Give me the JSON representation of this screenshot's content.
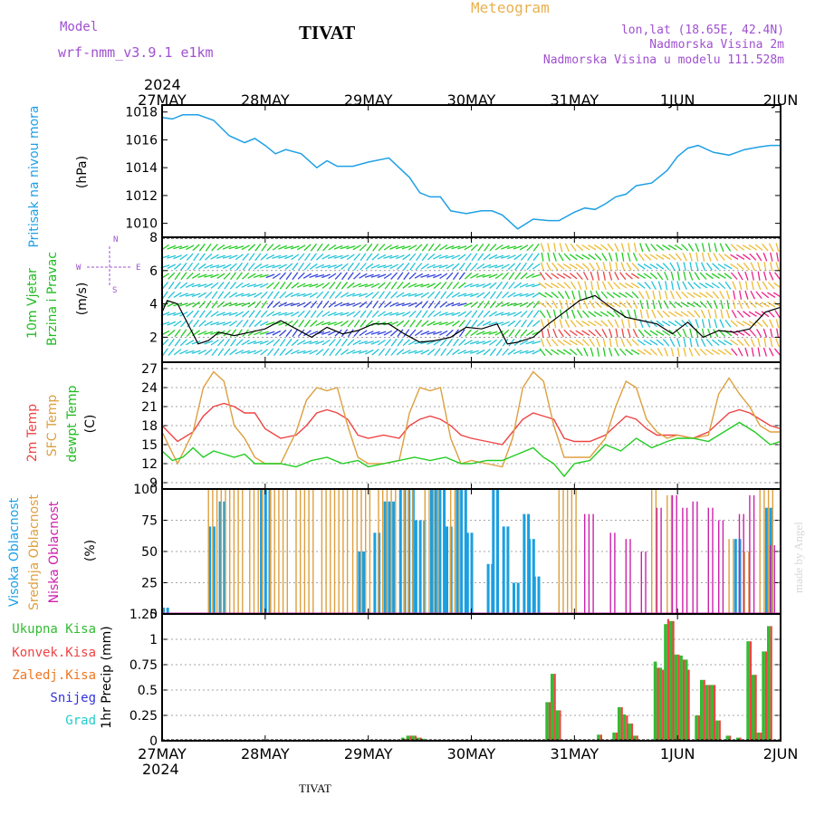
{
  "header": {
    "model_label": "Model",
    "model_name": "wrf-nmm_v3.9.1 e1km",
    "station": "TIVAT",
    "meteogram": "Meteogram",
    "lonlat": "lon,lat (18.65E, 42.4N)",
    "elev": "Nadmorska Visina 2m",
    "elev_model": "Nadmorska Visina u modelu 111.528m",
    "footer_station": "TIVAT",
    "watermark": "made by Angel",
    "year_top": "2024",
    "year_bottom": "2024"
  },
  "time_axis": {
    "labels": [
      "27MAY",
      "28MAY",
      "29MAY",
      "30MAY",
      "31MAY",
      "1JUN",
      "2JUN"
    ],
    "days": 6
  },
  "colors": {
    "pressure": "#1fa0e6",
    "t2m": "#ee4444",
    "tsfc": "#dda040",
    "dewpt": "#22cc22",
    "cloud_high": "#1b9fe0",
    "cloud_mid": "#dda040",
    "cloud_low": "#cc22aa",
    "precip_total": "#33bb33",
    "precip_conv": "#ee4444",
    "precip_frozen": "#ee7722",
    "snow": "#3333dd",
    "hail": "#22cccc",
    "wind_speed": "#000000"
  },
  "panels": {
    "pressure": {
      "ylabel": "Pritisak na nivou mora",
      "unit": "(hPa)",
      "ticks": [
        "1010",
        "1012",
        "1014",
        "1016",
        "1018"
      ]
    },
    "wind": {
      "ylabel1": "10m Vjetar",
      "ylabel2": "Brzina i Pravac",
      "unit": "(m/s)",
      "ticks": [
        "2",
        "4",
        "6",
        "8"
      ],
      "compass": {
        "w": "W",
        "e": "E",
        "n": "N",
        "s": "S"
      }
    },
    "temp": {
      "ylabel1": "2m Temp",
      "ylabel2": "SFC Temp",
      "ylabel3": "dewpt Temp",
      "unit": "(C)",
      "ticks": [
        "9",
        "12",
        "15",
        "18",
        "21",
        "24",
        "27"
      ]
    },
    "cloud": {
      "ylabel1": "Visoka Oblacnost",
      "ylabel2": "Srednja Oblacnost",
      "ylabel3": "Niska Oblacnost",
      "unit": "(%)",
      "ticks": [
        "0",
        "25",
        "50",
        "75",
        "100"
      ]
    },
    "precip": {
      "ylabel": "1hr Precip (mm)",
      "ticks": [
        "0",
        "0.25",
        "0.5",
        "0.75",
        "1",
        "1.25"
      ],
      "legend": [
        "Ukupna Kisa",
        "Konvek.Kisa",
        "Zaledj.Kisa",
        "Snijeg",
        "Grad"
      ]
    }
  },
  "chart_data": [
    {
      "type": "line",
      "name": "pressure",
      "ylim": [
        1009,
        1018.5
      ],
      "x_days": [
        0,
        0.1,
        0.2,
        0.35,
        0.5,
        0.65,
        0.8,
        0.9,
        1.0,
        1.1,
        1.2,
        1.35,
        1.5,
        1.6,
        1.7,
        1.85,
        2.0,
        2.2,
        2.4,
        2.5,
        2.6,
        2.7,
        2.8,
        2.95,
        3.1,
        3.2,
        3.3,
        3.45,
        3.6,
        3.75,
        3.85,
        4.0,
        4.1,
        4.2,
        4.3,
        4.4,
        4.5,
        4.6,
        4.75,
        4.9,
        5.0,
        5.1,
        5.2,
        5.35,
        5.5,
        5.65,
        5.8,
        5.9,
        6.0
      ],
      "values": [
        1017.6,
        1017.5,
        1017.8,
        1017.8,
        1017.4,
        1016.3,
        1015.8,
        1016.1,
        1015.6,
        1015.0,
        1015.3,
        1015.0,
        1014.0,
        1014.5,
        1014.1,
        1014.1,
        1014.4,
        1014.7,
        1013.3,
        1012.2,
        1011.9,
        1011.9,
        1010.9,
        1010.7,
        1010.9,
        1010.9,
        1010.6,
        1009.6,
        1010.3,
        1010.2,
        1010.2,
        1010.8,
        1011.1,
        1011.0,
        1011.4,
        1011.9,
        1012.1,
        1012.7,
        1012.9,
        1013.8,
        1014.8,
        1015.4,
        1015.6,
        1015.1,
        1014.9,
        1015.3,
        1015.5,
        1015.6,
        1015.6
      ]
    },
    {
      "type": "line",
      "name": "wind_speed",
      "ylim": [
        0.5,
        8
      ],
      "x_days": [
        0,
        0.05,
        0.15,
        0.25,
        0.35,
        0.45,
        0.55,
        0.7,
        0.85,
        1.0,
        1.15,
        1.3,
        1.45,
        1.6,
        1.75,
        1.9,
        2.05,
        2.2,
        2.35,
        2.5,
        2.65,
        2.8,
        2.95,
        3.1,
        3.25,
        3.35,
        3.45,
        3.6,
        3.75,
        3.9,
        4.05,
        4.2,
        4.35,
        4.5,
        4.65,
        4.8,
        4.95,
        5.1,
        5.25,
        5.4,
        5.55,
        5.7,
        5.85,
        6.0
      ],
      "values": [
        3.5,
        4.2,
        4.0,
        2.8,
        1.6,
        1.8,
        2.3,
        2.1,
        2.3,
        2.5,
        3.0,
        2.5,
        2.0,
        2.6,
        2.2,
        2.4,
        2.8,
        2.8,
        2.2,
        1.7,
        1.8,
        2.0,
        2.6,
        2.5,
        2.8,
        1.6,
        1.7,
        2.0,
        2.8,
        3.5,
        4.2,
        4.5,
        3.8,
        3.2,
        3.0,
        2.8,
        2.2,
        2.9,
        2.0,
        2.4,
        2.3,
        2.5,
        3.5,
        3.8
      ]
    },
    {
      "type": "line",
      "name": "temperature",
      "ylim": [
        8,
        28
      ],
      "series": [
        {
          "key": "t2m",
          "x_days": [
            0,
            0.15,
            0.3,
            0.4,
            0.5,
            0.6,
            0.7,
            0.8,
            0.9,
            1.0,
            1.15,
            1.3,
            1.4,
            1.5,
            1.6,
            1.7,
            1.8,
            1.9,
            2.0,
            2.15,
            2.3,
            2.4,
            2.5,
            2.6,
            2.7,
            2.8,
            2.9,
            3.0,
            3.15,
            3.3,
            3.4,
            3.5,
            3.6,
            3.7,
            3.8,
            3.9,
            4.0,
            4.15,
            4.3,
            4.4,
            4.5,
            4.6,
            4.7,
            4.8,
            4.9,
            5.0,
            5.15,
            5.3,
            5.4,
            5.5,
            5.6,
            5.7,
            5.8,
            5.9,
            6.0
          ],
          "values": [
            18,
            15.5,
            17,
            19.5,
            21,
            21.5,
            21,
            20,
            20,
            17.5,
            16,
            16.5,
            18,
            20,
            20.5,
            20,
            19,
            16.5,
            16,
            16.5,
            16,
            18,
            19,
            19.5,
            19,
            18,
            16.5,
            16,
            15.5,
            15,
            17,
            19,
            20,
            19.5,
            19,
            16,
            15.5,
            15.5,
            16.5,
            18,
            19.5,
            19,
            17.5,
            16.5,
            16.5,
            16.5,
            16,
            17,
            18.5,
            20,
            20.5,
            20,
            19,
            18,
            17.5
          ]
        },
        {
          "key": "tsfc",
          "x_days": [
            0,
            0.15,
            0.3,
            0.4,
            0.5,
            0.6,
            0.7,
            0.8,
            0.9,
            1.0,
            1.15,
            1.3,
            1.4,
            1.5,
            1.6,
            1.7,
            1.8,
            1.9,
            2.0,
            2.15,
            2.3,
            2.4,
            2.5,
            2.6,
            2.7,
            2.8,
            2.9,
            3.0,
            3.15,
            3.3,
            3.4,
            3.5,
            3.6,
            3.7,
            3.8,
            3.9,
            4.0,
            4.15,
            4.3,
            4.4,
            4.5,
            4.6,
            4.7,
            4.8,
            4.9,
            5.0,
            5.15,
            5.3,
            5.4,
            5.5,
            5.6,
            5.7,
            5.8,
            5.9,
            6.0
          ],
          "values": [
            17,
            12,
            17,
            24,
            26.5,
            25,
            18,
            16,
            13,
            12,
            12,
            17,
            22,
            24,
            23.5,
            24,
            18,
            13,
            12,
            12,
            12.5,
            20,
            24,
            23.5,
            24,
            16,
            12,
            12.5,
            12,
            11.5,
            16,
            24,
            26.5,
            25,
            18,
            13,
            13,
            13,
            16,
            21,
            25,
            24,
            19,
            17,
            16,
            16.5,
            16,
            16.5,
            23,
            25.5,
            23,
            21,
            18,
            17,
            17
          ]
        },
        {
          "key": "dewpt",
          "x_days": [
            0,
            0.1,
            0.2,
            0.3,
            0.4,
            0.5,
            0.6,
            0.7,
            0.8,
            0.9,
            1.0,
            1.15,
            1.3,
            1.45,
            1.6,
            1.75,
            1.9,
            2.0,
            2.15,
            2.3,
            2.45,
            2.6,
            2.75,
            2.9,
            3.0,
            3.15,
            3.3,
            3.45,
            3.6,
            3.7,
            3.8,
            3.9,
            4.0,
            4.15,
            4.3,
            4.45,
            4.6,
            4.75,
            4.9,
            5.0,
            5.15,
            5.3,
            5.45,
            5.6,
            5.75,
            5.9,
            6.0
          ],
          "values": [
            14,
            12.5,
            13,
            14.5,
            13,
            14,
            13.5,
            13,
            13.5,
            12,
            12,
            12,
            11.5,
            12.5,
            13,
            12,
            12.5,
            11.5,
            12,
            12.5,
            13,
            12.5,
            13,
            12,
            12,
            12.5,
            12.5,
            13.5,
            14.5,
            13,
            12,
            10,
            12,
            12.5,
            15,
            14,
            16,
            14.5,
            15.5,
            16,
            16,
            15.5,
            17,
            18.5,
            17,
            15,
            15.5
          ]
        }
      ]
    },
    {
      "type": "bar",
      "name": "cloud_cover",
      "ylim": [
        0,
        100
      ],
      "series": [
        {
          "key": "high",
          "segments": [
            [
              0.0,
              0.05,
              5
            ],
            [
              0.45,
              0.5,
              70
            ],
            [
              0.55,
              0.6,
              90
            ],
            [
              0.95,
              1.05,
              100
            ],
            [
              1.9,
              1.95,
              50
            ],
            [
              2.05,
              2.1,
              65
            ],
            [
              2.15,
              2.25,
              90
            ],
            [
              2.3,
              2.45,
              100
            ],
            [
              2.45,
              2.55,
              75
            ],
            [
              2.6,
              2.75,
              100
            ],
            [
              2.75,
              2.8,
              70
            ],
            [
              2.85,
              2.95,
              100
            ],
            [
              2.95,
              3.0,
              65
            ],
            [
              3.15,
              3.2,
              40
            ],
            [
              3.2,
              3.25,
              100
            ],
            [
              3.3,
              3.35,
              70
            ],
            [
              3.4,
              3.45,
              25
            ],
            [
              3.5,
              3.55,
              80
            ],
            [
              3.55,
              3.6,
              60
            ],
            [
              3.6,
              3.65,
              30
            ],
            [
              5.55,
              5.6,
              60
            ],
            [
              5.85,
              5.9,
              85
            ]
          ]
        },
        {
          "key": "mid",
          "segments": [
            [
              0.45,
              0.8,
              100
            ],
            [
              0.85,
              1.0,
              100
            ],
            [
              1.05,
              1.25,
              100
            ],
            [
              1.3,
              1.5,
              100
            ],
            [
              1.55,
              1.8,
              100
            ],
            [
              1.85,
              2.05,
              100
            ],
            [
              2.1,
              2.3,
              100
            ],
            [
              2.35,
              2.45,
              100
            ],
            [
              2.55,
              2.7,
              100
            ],
            [
              2.8,
              2.9,
              100
            ],
            [
              3.85,
              4.05,
              100
            ],
            [
              4.75,
              4.8,
              100
            ],
            [
              4.9,
              4.95,
              95
            ],
            [
              5.5,
              5.55,
              60
            ],
            [
              5.65,
              5.7,
              50
            ],
            [
              5.8,
              5.95,
              100
            ]
          ]
        },
        {
          "key": "low",
          "segments": [
            [
              4.1,
              4.2,
              80
            ],
            [
              4.35,
              4.4,
              65
            ],
            [
              4.5,
              4.55,
              60
            ],
            [
              4.65,
              4.7,
              50
            ],
            [
              4.8,
              4.85,
              85
            ],
            [
              4.95,
              5.0,
              95
            ],
            [
              5.05,
              5.1,
              85
            ],
            [
              5.15,
              5.2,
              90
            ],
            [
              5.3,
              5.35,
              85
            ],
            [
              5.4,
              5.45,
              75
            ],
            [
              5.6,
              5.65,
              80
            ],
            [
              5.7,
              5.75,
              95
            ],
            [
              5.9,
              5.95,
              55
            ]
          ]
        }
      ]
    },
    {
      "type": "bar",
      "name": "precipitation",
      "ylim": [
        0,
        1.25
      ],
      "bars_total": [
        [
          2.35,
          0.03
        ],
        [
          2.4,
          0.05
        ],
        [
          2.45,
          0.05
        ],
        [
          2.5,
          0.03
        ],
        [
          2.55,
          0.02
        ],
        [
          3.75,
          0.38
        ],
        [
          3.8,
          0.66
        ],
        [
          3.85,
          0.3
        ],
        [
          4.25,
          0.06
        ],
        [
          4.4,
          0.08
        ],
        [
          4.45,
          0.33
        ],
        [
          4.5,
          0.26
        ],
        [
          4.55,
          0.17
        ],
        [
          4.6,
          0.05
        ],
        [
          4.8,
          0.78
        ],
        [
          4.85,
          0.72
        ],
        [
          4.9,
          1.15
        ],
        [
          4.95,
          1.18
        ],
        [
          5.0,
          0.85
        ],
        [
          5.05,
          0.84
        ],
        [
          5.1,
          0.8
        ],
        [
          5.2,
          0.25
        ],
        [
          5.25,
          0.6
        ],
        [
          5.3,
          0.55
        ],
        [
          5.35,
          0.55
        ],
        [
          5.4,
          0.2
        ],
        [
          5.5,
          0.05
        ],
        [
          5.6,
          0.03
        ],
        [
          5.7,
          0.98
        ],
        [
          5.75,
          0.65
        ],
        [
          5.8,
          0.08
        ],
        [
          5.85,
          0.88
        ],
        [
          5.9,
          1.13
        ]
      ],
      "bars_conv": [
        [
          2.35,
          0.02
        ],
        [
          2.4,
          0.05
        ],
        [
          2.45,
          0.05
        ],
        [
          2.5,
          0.03
        ],
        [
          3.75,
          0.38
        ],
        [
          3.8,
          0.66
        ],
        [
          3.85,
          0.3
        ],
        [
          4.25,
          0.06
        ],
        [
          4.4,
          0.08
        ],
        [
          4.45,
          0.33
        ],
        [
          4.5,
          0.25
        ],
        [
          4.55,
          0.17
        ],
        [
          4.6,
          0.05
        ],
        [
          4.8,
          0.72
        ],
        [
          4.85,
          0.7
        ],
        [
          4.9,
          1.2
        ],
        [
          4.95,
          1.18
        ],
        [
          5.0,
          0.85
        ],
        [
          5.05,
          0.8
        ],
        [
          5.1,
          0.7
        ],
        [
          5.2,
          0.25
        ],
        [
          5.25,
          0.6
        ],
        [
          5.3,
          0.55
        ],
        [
          5.35,
          0.55
        ],
        [
          5.4,
          0.2
        ],
        [
          5.5,
          0.05
        ],
        [
          5.6,
          0.03
        ],
        [
          5.7,
          0.98
        ],
        [
          5.75,
          0.65
        ],
        [
          5.8,
          0.08
        ],
        [
          5.85,
          0.88
        ],
        [
          5.9,
          1.13
        ]
      ]
    }
  ]
}
